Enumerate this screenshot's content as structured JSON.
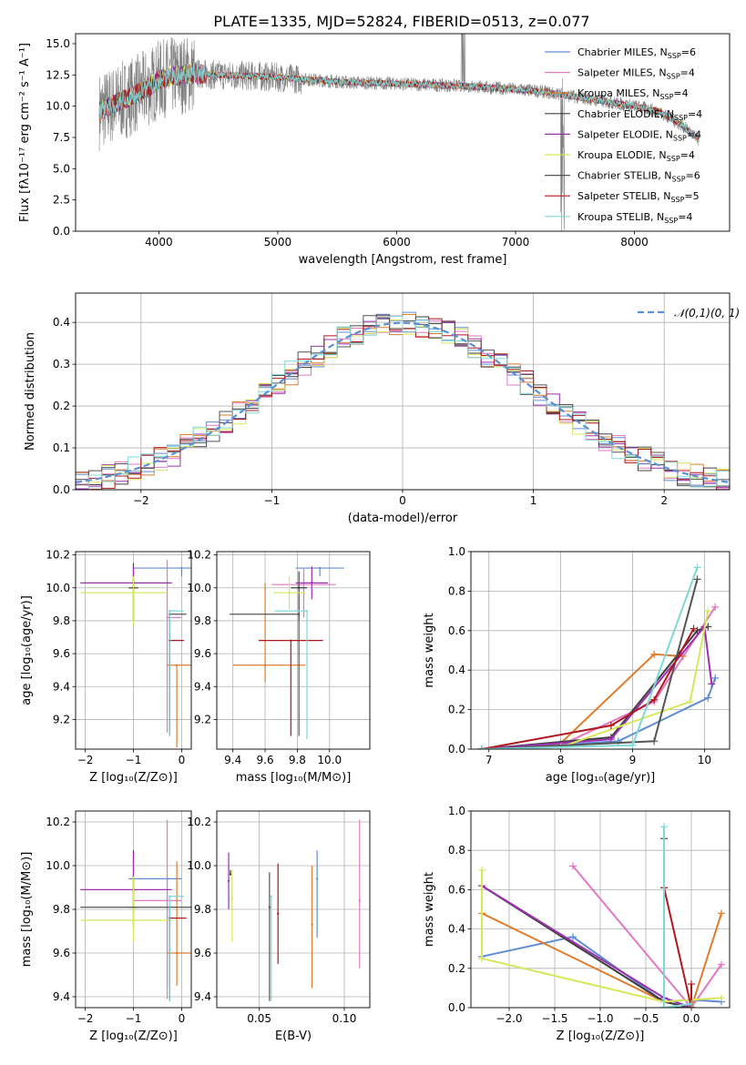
{
  "title": "PLATE=1335, MJD=52824, FIBERID=0513, z=0.077",
  "colors": {
    "Chabrier MILES": "#5f8dd3",
    "Salpeter MILES": "#e377c2",
    "Kroupa MILES": "#e07b2c",
    "Chabrier ELODIE": "#404040",
    "Salpeter ELODIE": "#9b30b0",
    "Kroupa ELODIE": "#d6e85a",
    "Chabrier STELIB": "#555555",
    "Salpeter STELIB": "#b0181f",
    "Kroupa STELIB": "#7fd8d8",
    "data": "#808080",
    "normal": "#5b8fd6"
  },
  "chart_data": [
    {
      "type": "line",
      "panel": "spectrum",
      "title": "PLATE=1335, MJD=52824, FIBERID=0513, z=0.077",
      "xlabel": "wavelength [Angstrom, rest frame]",
      "ylabel": "Flux [fλ10⁻¹⁷ erg cm⁻² s⁻¹ A⁻¹]",
      "xlim": [
        3300,
        8800
      ],
      "ylim": [
        0,
        15.8
      ],
      "xticks": [
        4000,
        5000,
        6000,
        7000,
        8000
      ],
      "yticks": [
        0.0,
        2.5,
        5.0,
        7.5,
        10.0,
        12.5,
        15.0
      ],
      "grid": false,
      "legend": "top-right",
      "legend_entries": [
        {
          "name": "Chabrier MILES",
          "nssp": "6"
        },
        {
          "name": "Salpeter MILES",
          "nssp": "4"
        },
        {
          "name": "Kroupa MILES",
          "nssp": "4"
        },
        {
          "name": "Chabrier ELODIE",
          "nssp": "4"
        },
        {
          "name": "Salpeter ELODIE",
          "nssp": "4"
        },
        {
          "name": "Kroupa ELODIE",
          "nssp": "4"
        },
        {
          "name": "Chabrier STELIB",
          "nssp": "6"
        },
        {
          "name": "Salpeter STELIB",
          "nssp": "5"
        },
        {
          "name": "Kroupa STELIB",
          "nssp": "4"
        }
      ],
      "approx_continuum": {
        "x": [
          3500,
          3700,
          3900,
          4000,
          4100,
          4300,
          4500,
          4800,
          5000,
          5300,
          5600,
          6000,
          6300,
          6600,
          6900,
          7200,
          7400,
          7600,
          7800,
          8000,
          8200,
          8400,
          8550
        ],
        "y": [
          9.6,
          10.5,
          11.4,
          12.1,
          12.4,
          12.6,
          12.5,
          12.4,
          12.3,
          12.1,
          11.9,
          11.8,
          11.7,
          11.6,
          11.4,
          11.2,
          10.9,
          10.6,
          10.3,
          10.0,
          9.6,
          8.5,
          7.2
        ]
      }
    },
    {
      "type": "histogram",
      "panel": "residuals",
      "xlabel": "(data-model)/error",
      "ylabel": "Normed distribution",
      "xlim": [
        -2.5,
        2.5
      ],
      "ylim": [
        0,
        0.47
      ],
      "xticks": [
        -2,
        -1,
        0,
        1,
        2
      ],
      "yticks": [
        0.0,
        0.1,
        0.2,
        0.3,
        0.4
      ],
      "grid": true,
      "legend": "top-right",
      "bin_edges_start": -2.5,
      "bin_width": 0.1,
      "bins": 50,
      "reference_curve": {
        "name": "𝒩(0,1)",
        "mean": 0,
        "sigma": 1,
        "style": "dashed"
      }
    },
    {
      "type": "scatter",
      "panel": "age-vs-Z",
      "xlabel": "Z [log₁₀(Z/Z⊙)]",
      "ylabel": "age  [log₁₀(age/yr)]",
      "xlim": [
        -2.2,
        0.2
      ],
      "ylim": [
        9.02,
        10.22
      ],
      "xticks": [
        -2,
        -1,
        0
      ],
      "yticks": [
        9.2,
        9.4,
        9.6,
        9.8,
        10.0,
        10.2
      ],
      "grid": true,
      "points": [
        {
          "model": "Chabrier MILES",
          "x": 0.0,
          "xerr": [
            1.0,
            0.3
          ],
          "y": 10.12,
          "yerr": [
            0.05,
            0.0
          ]
        },
        {
          "model": "Salpeter MILES",
          "x": -0.3,
          "xerr": [
            0.0,
            0.3
          ],
          "y": 9.82,
          "yerr": [
            0.7,
            0.35
          ]
        },
        {
          "model": "Kroupa MILES",
          "x": -0.1,
          "xerr": [
            0.2,
            0.3
          ],
          "y": 9.53,
          "yerr": [
            0.5,
            0.0
          ]
        },
        {
          "model": "Chabrier ELODIE",
          "x": -1.0,
          "xerr": [
            0.1,
            0.1
          ],
          "y": 10.0,
          "yerr": [
            0.2,
            0.15
          ]
        },
        {
          "model": "Salpeter ELODIE",
          "x": -1.0,
          "xerr": [
            1.1,
            0.8
          ],
          "y": 10.03,
          "yerr": [
            0.23,
            0.1
          ]
        },
        {
          "model": "Kroupa ELODIE",
          "x": -1.0,
          "xerr": [
            1.1,
            0.7
          ],
          "y": 9.97,
          "yerr": [
            0.2,
            0.1
          ]
        },
        {
          "model": "Chabrier STELIB",
          "x": -0.25,
          "xerr": [
            0.0,
            0.35
          ],
          "y": 9.84,
          "yerr": [
            0.74,
            0.0
          ]
        },
        {
          "model": "Salpeter STELIB",
          "x": -0.25,
          "xerr": [
            0.0,
            0.3
          ],
          "y": 9.68,
          "yerr": [
            0.58,
            0.0
          ]
        },
        {
          "model": "Kroupa STELIB",
          "x": -0.25,
          "xerr": [
            0.0,
            0.3
          ],
          "y": 9.86,
          "yerr": [
            0.76,
            0.0
          ]
        }
      ]
    },
    {
      "type": "scatter",
      "panel": "age-vs-mass",
      "xlabel": "mass [log₁₀(M/M⊙)]",
      "ylabel": "",
      "xlim": [
        9.3,
        10.25
      ],
      "ylim": [
        9.02,
        10.22
      ],
      "xticks": [
        9.4,
        9.6,
        9.8,
        10.0
      ],
      "yticks": [
        9.2,
        9.4,
        9.6,
        9.8,
        10.0,
        10.2
      ],
      "grid": true,
      "points": [
        {
          "model": "Chabrier MILES",
          "x": 9.94,
          "xerr": [
            0.15,
            0.15
          ],
          "y": 10.12,
          "yerr": [
            0.05,
            0.0
          ]
        },
        {
          "model": "Salpeter MILES",
          "x": 9.84,
          "xerr": [
            0.2,
            0.2
          ],
          "y": 10.02,
          "yerr": [
            0.2,
            0.1
          ]
        },
        {
          "model": "Kroupa MILES",
          "x": 9.6,
          "xerr": [
            0.2,
            0.25
          ],
          "y": 9.53,
          "yerr": [
            0.1,
            0.5
          ]
        },
        {
          "model": "Chabrier ELODIE",
          "x": 9.81,
          "xerr": [
            0.05,
            0.05
          ],
          "y": 10.0,
          "yerr": [
            0.2,
            0.1
          ]
        },
        {
          "model": "Salpeter ELODIE",
          "x": 9.89,
          "xerr": [
            0.1,
            0.1
          ],
          "y": 10.03,
          "yerr": [
            0.1,
            0.1
          ]
        },
        {
          "model": "Kroupa ELODIE",
          "x": 9.75,
          "xerr": [
            0.1,
            0.1
          ],
          "y": 9.97,
          "yerr": [
            0.1,
            0.1
          ]
        },
        {
          "model": "Chabrier STELIB",
          "x": 9.81,
          "xerr": [
            0.43,
            0.0
          ],
          "y": 9.84,
          "yerr": [
            0.74,
            0.0
          ]
        },
        {
          "model": "Salpeter STELIB",
          "x": 9.76,
          "xerr": [
            0.2,
            0.2
          ],
          "y": 9.68,
          "yerr": [
            0.58,
            0.0
          ]
        },
        {
          "model": "Kroupa STELIB",
          "x": 9.86,
          "xerr": [
            0.2,
            0.0
          ],
          "y": 9.86,
          "yerr": [
            0.78,
            0.0
          ]
        }
      ]
    },
    {
      "type": "line",
      "panel": "massweight-vs-age",
      "xlabel": "age  [log₁₀(age/yr)]",
      "ylabel": "mass weight",
      "xlim": [
        6.75,
        10.35
      ],
      "ylim": [
        0,
        1.0
      ],
      "xticks": [
        7,
        8,
        9,
        10
      ],
      "yticks": [
        0.0,
        0.2,
        0.4,
        0.6,
        0.8,
        1.0
      ],
      "grid": true,
      "series": [
        {
          "name": "Chabrier MILES",
          "x": [
            6.9,
            8.8,
            10.05,
            10.15
          ],
          "y": [
            0.0,
            0.04,
            0.26,
            0.36
          ]
        },
        {
          "name": "Salpeter MILES",
          "x": [
            6.9,
            8.0,
            9.3,
            10.15
          ],
          "y": [
            0.0,
            0.02,
            0.24,
            0.72
          ]
        },
        {
          "name": "Kroupa MILES",
          "x": [
            6.9,
            8.0,
            9.3,
            9.7
          ],
          "y": [
            0.0,
            0.03,
            0.48,
            0.47
          ]
        },
        {
          "name": "Chabrier ELODIE",
          "x": [
            6.9,
            8.7,
            9.9,
            10.05
          ],
          "y": [
            0.0,
            0.06,
            0.6,
            0.62
          ]
        },
        {
          "name": "Salpeter ELODIE",
          "x": [
            6.9,
            8.7,
            10.0,
            10.1
          ],
          "y": [
            0.0,
            0.05,
            0.62,
            0.33
          ]
        },
        {
          "name": "Kroupa ELODIE",
          "x": [
            6.9,
            8.0,
            9.8,
            10.05
          ],
          "y": [
            0.0,
            0.01,
            0.24,
            0.7
          ]
        },
        {
          "name": "Chabrier STELIB",
          "x": [
            6.9,
            9.3,
            9.9
          ],
          "y": [
            0.0,
            0.04,
            0.86
          ]
        },
        {
          "name": "Salpeter STELIB",
          "x": [
            6.9,
            8.7,
            9.3,
            9.85
          ],
          "y": [
            0.0,
            0.12,
            0.25,
            0.61
          ]
        },
        {
          "name": "Kroupa STELIB",
          "x": [
            6.9,
            9.0,
            9.9
          ],
          "y": [
            0.0,
            0.02,
            0.92
          ]
        }
      ]
    },
    {
      "type": "scatter",
      "panel": "mass-vs-Z",
      "xlabel": "Z [log₁₀(Z/Z⊙)]",
      "ylabel": "mass [log₁₀(M/M⊙)]",
      "xlim": [
        -2.2,
        0.2
      ],
      "ylim": [
        9.35,
        10.25
      ],
      "xticks": [
        -2,
        -1,
        0
      ],
      "yticks": [
        9.4,
        9.6,
        9.8,
        10.0,
        10.2
      ],
      "grid": true,
      "points": [
        {
          "model": "Chabrier MILES",
          "x": -0.3,
          "xerr": [
            0.8,
            0.3
          ],
          "y": 9.94,
          "yerr": [
            0.5,
            0.0
          ]
        },
        {
          "model": "Salpeter MILES",
          "x": -0.3,
          "xerr": [
            0.7,
            0.3
          ],
          "y": 9.84,
          "yerr": [
            0.45,
            0.37
          ]
        },
        {
          "model": "Kroupa MILES",
          "x": -0.1,
          "xerr": [
            0.2,
            0.3
          ],
          "y": 9.6,
          "yerr": [
            0.15,
            0.42
          ]
        },
        {
          "model": "Chabrier ELODIE",
          "x": -1.0,
          "xerr": [
            0.1,
            0.1
          ],
          "y": 9.81,
          "yerr": [
            0.1,
            0.26
          ]
        },
        {
          "model": "Salpeter ELODIE",
          "x": -1.0,
          "xerr": [
            1.1,
            0.8
          ],
          "y": 9.89,
          "yerr": [
            0.1,
            0.17
          ]
        },
        {
          "model": "Kroupa ELODIE",
          "x": -1.0,
          "xerr": [
            1.1,
            0.8
          ],
          "y": 9.75,
          "yerr": [
            0.1,
            0.2
          ]
        },
        {
          "model": "Chabrier STELIB",
          "x": -0.25,
          "xerr": [
            1.85,
            0.55
          ],
          "y": 9.81,
          "yerr": [
            0.43,
            0.0
          ]
        },
        {
          "model": "Salpeter STELIB",
          "x": -0.25,
          "xerr": [
            0.0,
            0.35
          ],
          "y": 9.76,
          "yerr": [
            0.37,
            0.0
          ]
        },
        {
          "model": "Kroupa STELIB",
          "x": -0.25,
          "xerr": [
            0.0,
            0.3
          ],
          "y": 9.86,
          "yerr": [
            0.48,
            0.0
          ]
        }
      ]
    },
    {
      "type": "scatter",
      "panel": "mass-vs-ebv",
      "xlabel": "E(B-V)",
      "ylabel": "",
      "xlim": [
        0.025,
        0.115
      ],
      "ylim": [
        9.35,
        10.25
      ],
      "xticks": [
        0.05,
        0.1
      ],
      "yticks": [
        9.4,
        9.6,
        9.8,
        10.0,
        10.2
      ],
      "grid": true,
      "points": [
        {
          "model": "Chabrier MILES",
          "x": 0.084,
          "y": 9.94,
          "yerr": [
            0.27,
            0.13
          ]
        },
        {
          "model": "Salpeter MILES",
          "x": 0.109,
          "y": 9.84,
          "yerr": [
            0.31,
            0.37
          ]
        },
        {
          "model": "Kroupa MILES",
          "x": 0.081,
          "y": 9.73,
          "yerr": [
            0.29,
            0.27
          ]
        },
        {
          "model": "Chabrier ELODIE",
          "x": 0.033,
          "y": 9.96,
          "yerr": [
            0.0,
            0.02
          ]
        },
        {
          "model": "Salpeter ELODIE",
          "x": 0.032,
          "y": 9.93,
          "yerr": [
            0.13,
            0.13
          ]
        },
        {
          "model": "Kroupa ELODIE",
          "x": 0.034,
          "y": 9.85,
          "yerr": [
            0.2,
            0.13
          ]
        },
        {
          "model": "Chabrier STELIB",
          "x": 0.056,
          "y": 9.81,
          "yerr": [
            0.43,
            0.16
          ]
        },
        {
          "model": "Salpeter STELIB",
          "x": 0.061,
          "y": 9.78,
          "yerr": [
            0.23,
            0.23
          ]
        },
        {
          "model": "Kroupa STELIB",
          "x": 0.057,
          "y": 9.86,
          "yerr": [
            0.48,
            0.0
          ]
        }
      ]
    },
    {
      "type": "line",
      "panel": "massweight-vs-Z",
      "xlabel": "Z [log₁₀(Z/Z⊙)]",
      "ylabel": "mass weight",
      "xlim": [
        -2.42,
        0.42
      ],
      "ylim": [
        0,
        1.0
      ],
      "xticks": [
        -2.0,
        -1.5,
        -1.0,
        -0.5,
        0.0
      ],
      "yticks": [
        0.0,
        0.2,
        0.4,
        0.6,
        0.8,
        1.0
      ],
      "grid": true,
      "series": [
        {
          "name": "Chabrier MILES",
          "x": [
            -2.3,
            -1.3,
            -0.3,
            0.0,
            0.33
          ],
          "y": [
            0.26,
            0.36,
            0.03,
            0.04,
            0.03
          ]
        },
        {
          "name": "Salpeter MILES",
          "x": [
            -1.3,
            0.0,
            0.33
          ],
          "y": [
            0.72,
            0.0,
            0.22
          ]
        },
        {
          "name": "Kroupa MILES",
          "x": [
            -2.3,
            -0.3,
            0.0,
            0.33
          ],
          "y": [
            0.48,
            0.03,
            0.0,
            0.48
          ]
        },
        {
          "name": "Chabrier ELODIE",
          "x": [
            -2.3,
            -0.3,
            0.0
          ],
          "y": [
            0.62,
            0.03,
            0.0
          ]
        },
        {
          "name": "Salpeter ELODIE",
          "x": [
            -2.3,
            -0.3,
            0.0
          ],
          "y": [
            0.62,
            0.05,
            0.0
          ]
        },
        {
          "name": "Kroupa ELODIE",
          "x": [
            -2.3,
            -2.3,
            -0.3,
            0.33
          ],
          "y": [
            0.7,
            0.25,
            0.03,
            0.05
          ]
        },
        {
          "name": "Chabrier STELIB",
          "x": [
            -0.3,
            -0.3,
            0.0
          ],
          "y": [
            0.86,
            0.0,
            0.0
          ]
        },
        {
          "name": "Salpeter STELIB",
          "x": [
            -0.3,
            0.0,
            0.0
          ],
          "y": [
            0.61,
            0.0,
            0.12
          ]
        },
        {
          "name": "Kroupa STELIB",
          "x": [
            -0.3,
            -0.3,
            0.0
          ],
          "y": [
            0.92,
            0.0,
            0.02
          ]
        }
      ]
    }
  ]
}
